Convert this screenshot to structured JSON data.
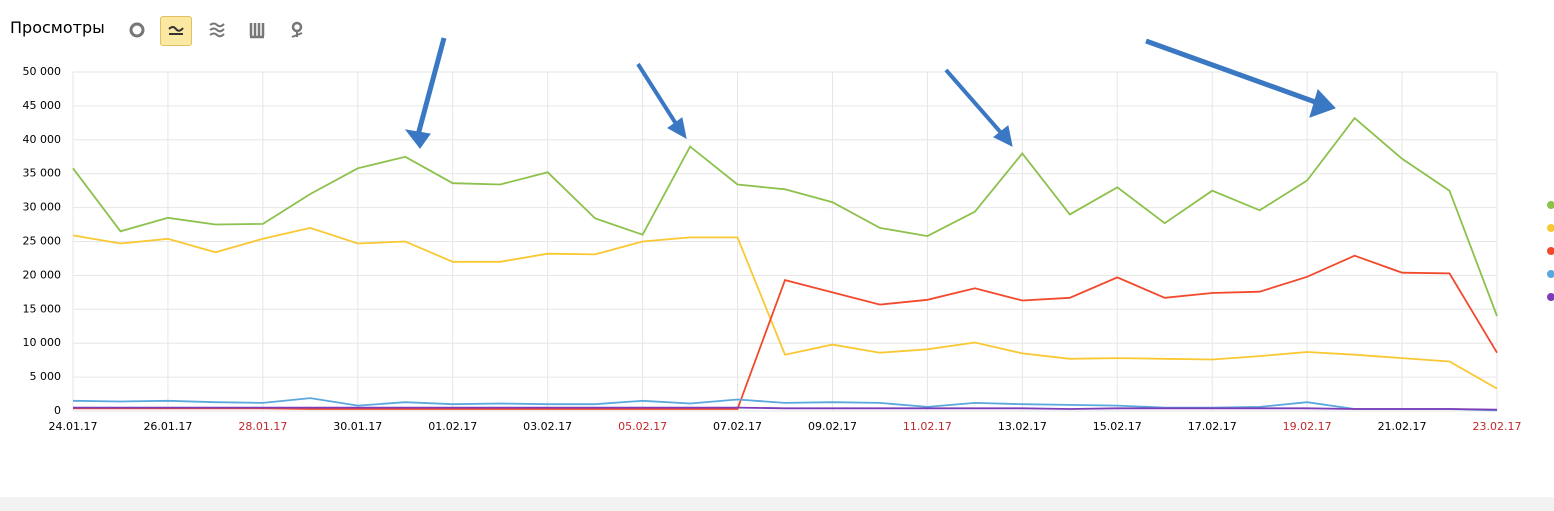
{
  "header": {
    "title": "Просмотры"
  },
  "chart_data": {
    "type": "line",
    "categories": [
      "24.01.17",
      null,
      "26.01.17",
      null,
      "28.01.17",
      null,
      "30.01.17",
      null,
      "01.02.17",
      null,
      "03.02.17",
      null,
      "05.02.17",
      null,
      "07.02.17",
      null,
      "09.02.17",
      null,
      "11.02.17",
      null,
      "13.02.17",
      null,
      "15.02.17",
      null,
      "17.02.17",
      null,
      "19.02.17",
      null,
      "21.02.17",
      null,
      "23.02.17"
    ],
    "highlighted_categories": [
      "28.01.17",
      "05.02.17",
      "11.02.17",
      "19.02.17",
      "23.02.17"
    ],
    "highlight_color": "#c0282d",
    "series": [
      {
        "color": "#8cc14c",
        "values": [
          35800,
          26500,
          28500,
          27500,
          27600,
          32000,
          35800,
          37500,
          33600,
          33400,
          35200,
          28400,
          26000,
          39000,
          33400,
          32700,
          30800,
          27000,
          25800,
          29400,
          38000,
          29000,
          33000,
          27700,
          32500,
          29600,
          34000,
          43200,
          37200,
          32500,
          14000
        ]
      },
      {
        "color": "#f9c832",
        "values": [
          25900,
          24700,
          25400,
          23400,
          25400,
          27000,
          24700,
          25000,
          22000,
          22000,
          23200,
          23100,
          25000,
          25600,
          25600,
          8300,
          9800,
          8600,
          9100,
          10100,
          8500,
          7700,
          7800,
          7700,
          7600,
          8100,
          8700,
          8300,
          7800,
          7300,
          3300
        ]
      },
      {
        "color": "#f2492c",
        "values": [
          400,
          400,
          400,
          400,
          400,
          300,
          300,
          300,
          300,
          300,
          300,
          300,
          300,
          300,
          300,
          19300,
          17500,
          15700,
          16400,
          18100,
          16300,
          16700,
          19700,
          16700,
          17400,
          17600,
          19800,
          22900,
          20400,
          20300,
          8600
        ]
      },
      {
        "color": "#5aa8dd",
        "values": [
          1500,
          1400,
          1500,
          1300,
          1200,
          1900,
          800,
          1300,
          1000,
          1100,
          1000,
          1000,
          1500,
          1100,
          1700,
          1200,
          1300,
          1200,
          600,
          1200,
          1000,
          900,
          800,
          500,
          500,
          600,
          1300,
          300,
          300,
          300,
          100
        ]
      },
      {
        "color": "#7d3cb8",
        "values": [
          500,
          500,
          500,
          500,
          500,
          500,
          500,
          500,
          500,
          500,
          500,
          500,
          500,
          500,
          500,
          400,
          400,
          400,
          400,
          400,
          400,
          300,
          400,
          400,
          400,
          400,
          400,
          300,
          300,
          300,
          200
        ]
      }
    ],
    "ylim": [
      0,
      50000
    ],
    "yticks": [
      0,
      {
        "value": 5000,
        "label": "5 000"
      },
      {
        "value": 10000,
        "label": "10 000"
      },
      {
        "value": 15000,
        "label": "15 000"
      },
      {
        "value": 20000,
        "label": "20 000"
      },
      {
        "value": 25000,
        "label": "25 000"
      },
      {
        "value": 30000,
        "label": "30 000"
      },
      {
        "value": 35000,
        "label": "35 000"
      },
      {
        "value": 40000,
        "label": "40 000"
      },
      {
        "value": 45000,
        "label": "45 000"
      },
      {
        "value": 50000,
        "label": "50 000"
      }
    ],
    "grid": true
  }
}
